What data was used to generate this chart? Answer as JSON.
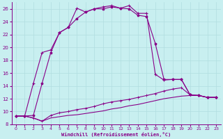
{
  "xlabel": "Windchill (Refroidissement éolien,°C)",
  "background_color": "#c8eff0",
  "grid_color": "#b0dde0",
  "line_color": "#880088",
  "xlim": [
    -0.5,
    23.5
  ],
  "ylim": [
    8,
    27
  ],
  "xticks": [
    0,
    1,
    2,
    3,
    4,
    5,
    6,
    7,
    8,
    9,
    10,
    11,
    12,
    13,
    14,
    15,
    16,
    17,
    18,
    19,
    20,
    21,
    22,
    23
  ],
  "yticks": [
    8,
    10,
    12,
    14,
    16,
    18,
    20,
    22,
    24,
    26
  ],
  "line1_x": [
    0,
    1,
    2,
    3,
    4,
    5,
    6,
    7,
    8,
    9,
    10,
    11,
    12,
    13,
    14,
    15,
    16,
    17,
    18,
    19,
    20,
    21,
    22,
    23
  ],
  "line1_y": [
    9.3,
    9.3,
    14.4,
    19.2,
    19.6,
    22.3,
    23.1,
    26.1,
    25.5,
    26.0,
    26.3,
    26.5,
    26.1,
    26.5,
    25.3,
    25.3,
    15.8,
    14.9,
    15.0,
    15.0,
    12.6,
    12.5,
    12.2,
    12.2
  ],
  "line2_x": [
    0,
    1,
    2,
    3,
    4,
    5,
    6,
    7,
    8,
    9,
    10,
    11,
    12,
    13,
    14,
    15,
    16,
    17,
    18,
    19,
    20,
    21,
    22,
    23
  ],
  "line2_y": [
    9.3,
    9.3,
    9.4,
    14.4,
    19.2,
    22.3,
    23.1,
    24.5,
    25.5,
    26.0,
    26.0,
    26.3,
    26.1,
    26.0,
    25.0,
    24.8,
    20.6,
    15.0,
    15.0,
    15.0,
    12.6,
    12.5,
    12.2,
    12.2
  ],
  "line3_x": [
    0,
    1,
    2,
    3,
    4,
    5,
    6,
    7,
    8,
    9,
    10,
    11,
    12,
    13,
    14,
    15,
    16,
    17,
    18,
    19,
    20,
    21,
    22,
    23
  ],
  "line3_y": [
    9.3,
    9.3,
    9.0,
    8.5,
    9.4,
    9.8,
    10.0,
    10.3,
    10.5,
    10.8,
    11.2,
    11.5,
    11.7,
    11.9,
    12.2,
    12.5,
    12.8,
    13.2,
    13.5,
    13.7,
    12.6,
    12.5,
    12.2,
    12.2
  ],
  "line4_x": [
    0,
    1,
    2,
    3,
    4,
    5,
    6,
    7,
    8,
    9,
    10,
    11,
    12,
    13,
    14,
    15,
    16,
    17,
    18,
    19,
    20,
    21,
    22,
    23
  ],
  "line4_y": [
    9.3,
    9.3,
    9.0,
    8.5,
    9.0,
    9.2,
    9.4,
    9.5,
    9.7,
    9.9,
    10.1,
    10.4,
    10.6,
    10.9,
    11.1,
    11.4,
    11.7,
    12.0,
    12.2,
    12.4,
    12.5,
    12.5,
    12.2,
    12.2
  ]
}
